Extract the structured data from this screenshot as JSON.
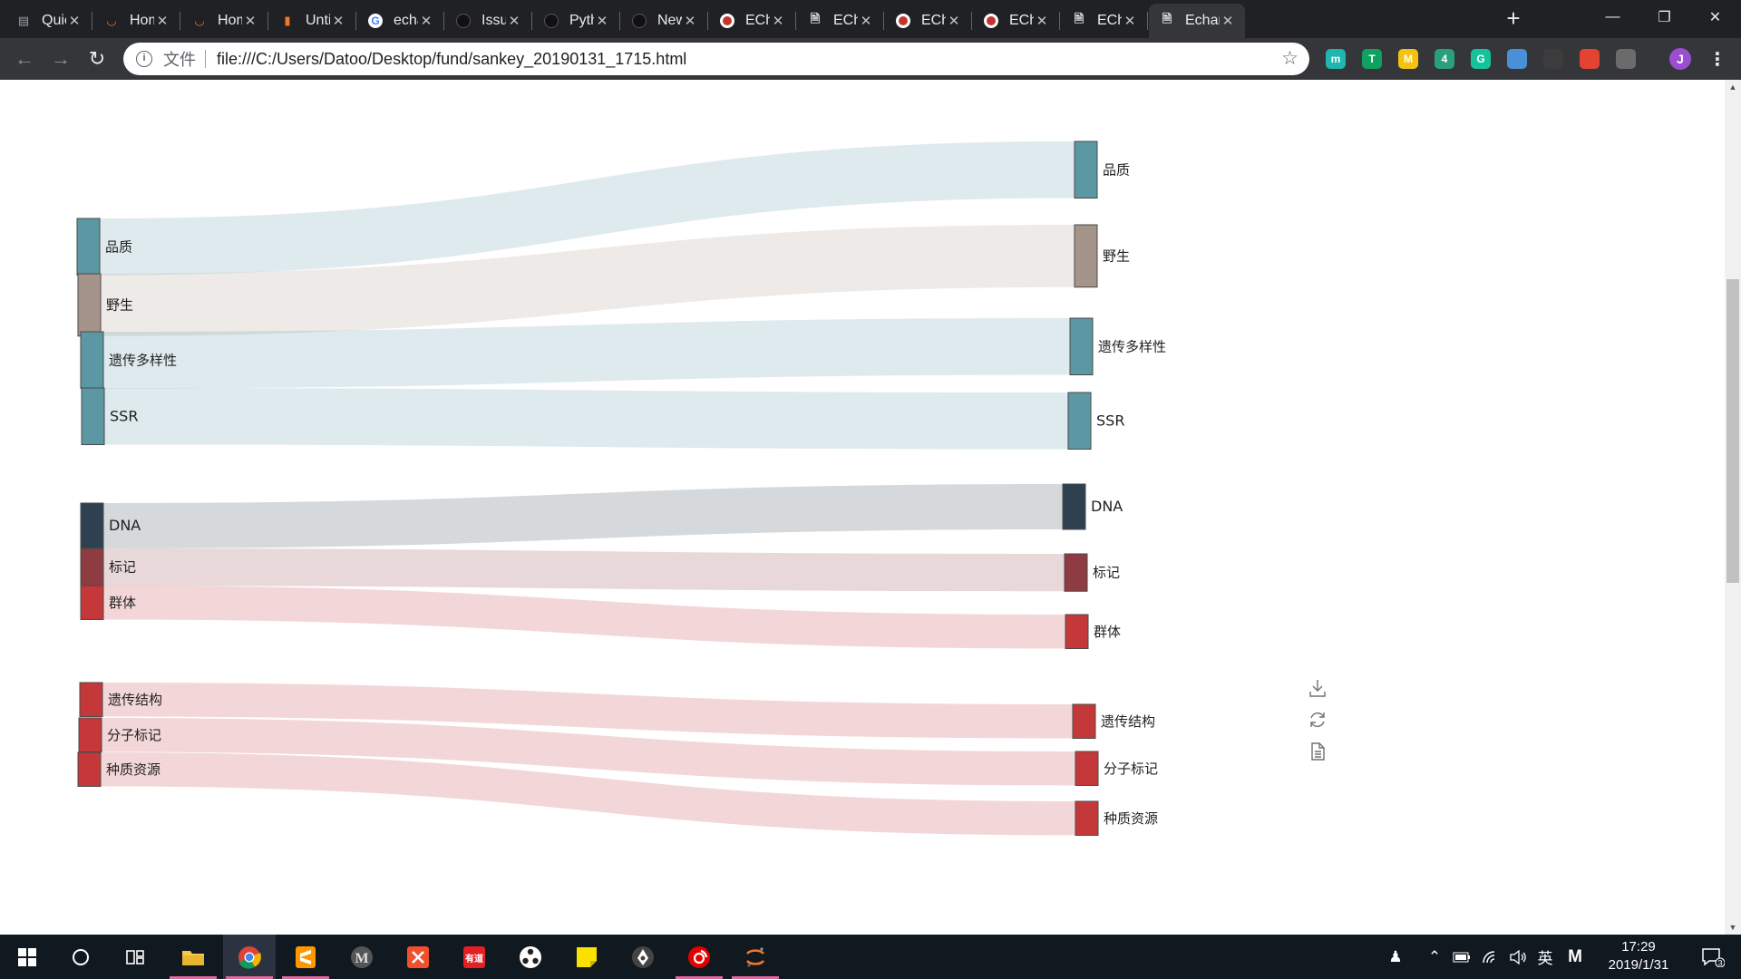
{
  "browser": {
    "tabs": [
      {
        "title": "Quick",
        "icon": "list-icon",
        "active": false
      },
      {
        "title": "Home",
        "icon": "jupyter-icon",
        "active": false
      },
      {
        "title": "Home",
        "icon": "jupyter-icon",
        "active": false
      },
      {
        "title": "Untitled",
        "icon": "notebook-icon",
        "active": false
      },
      {
        "title": "echarts",
        "icon": "google-icon",
        "active": false
      },
      {
        "title": "Issues",
        "icon": "github-icon",
        "active": false
      },
      {
        "title": "Python",
        "icon": "github-icon",
        "active": false
      },
      {
        "title": "New",
        "icon": "github-icon",
        "active": false
      },
      {
        "title": "ECharts",
        "icon": "echarts-icon",
        "active": false
      },
      {
        "title": "ECharts",
        "icon": "page-icon",
        "active": false
      },
      {
        "title": "ECharts",
        "icon": "echarts-icon",
        "active": false
      },
      {
        "title": "ECharts",
        "icon": "echarts-icon",
        "active": false
      },
      {
        "title": "ECharts",
        "icon": "page-icon",
        "active": false
      },
      {
        "title": "Echarts",
        "icon": "page-icon",
        "active": true
      }
    ],
    "address": {
      "scheme_label": "文件",
      "url": "file:///C:/Users/Datoo/Desktop/fund/sankey_20190131_1715.html"
    },
    "profile_initial": "J",
    "extensions": [
      {
        "name": "teal-extension-icon",
        "label": "m",
        "color": "#1fb6b0"
      },
      {
        "name": "tampermonkey-icon",
        "label": "T",
        "color": "#10a060"
      },
      {
        "name": "m-extension-icon",
        "label": "M",
        "color": "#f5c211"
      },
      {
        "name": "share-extension-icon",
        "label": "4",
        "color": "#28a07a"
      },
      {
        "name": "grammarly-icon",
        "label": "G",
        "color": "#15c39a"
      },
      {
        "name": "shield-extension-icon",
        "label": "",
        "color": "#4a90d9"
      },
      {
        "name": "circle-extension-icon",
        "label": "",
        "color": "#3c3c3c"
      },
      {
        "name": "todoist-icon",
        "label": "",
        "color": "#e44332"
      },
      {
        "name": "glasses-extension-icon",
        "label": "",
        "color": "#6b6b6b"
      }
    ]
  },
  "chart_data": {
    "type": "sankey",
    "layout": "horizontal",
    "links": [
      {
        "source": "品质",
        "target": "品质",
        "value": 50
      },
      {
        "source": "野生",
        "target": "野生",
        "value": 55
      },
      {
        "source": "遗传多样性",
        "target": "遗传多样性",
        "value": 50
      },
      {
        "source": "SSR",
        "target": "SSR",
        "value": 50
      },
      {
        "source": "DNA",
        "target": "DNA",
        "value": 40
      },
      {
        "source": "标记",
        "target": "标记",
        "value": 33
      },
      {
        "source": "群体",
        "target": "群体",
        "value": 30
      },
      {
        "source": "遗传结构",
        "target": "遗传结构",
        "value": 30
      },
      {
        "source": "分子标记",
        "target": "分子标记",
        "value": 30
      },
      {
        "source": "种质资源",
        "target": "种质资源",
        "value": 30
      }
    ],
    "colors": {
      "teal": "#5b98a3",
      "taupe": "#a59489",
      "navy": "#2f4051",
      "maroon": "#8e3b41",
      "red": "#c4383a"
    },
    "toolbox": [
      "download-icon",
      "refresh-icon",
      "data-view-icon"
    ]
  },
  "taskbar": {
    "apps": [
      {
        "name": "file-explorer-icon"
      },
      {
        "name": "chrome-icon"
      },
      {
        "name": "sublime-text-icon"
      },
      {
        "name": "markdown-icon"
      },
      {
        "name": "xmind-icon"
      },
      {
        "name": "youdao-icon"
      },
      {
        "name": "davinci-icon"
      },
      {
        "name": "sticky-notes-icon"
      },
      {
        "name": "inkscape-icon"
      },
      {
        "name": "netease-music-icon"
      },
      {
        "name": "jupyter-icon"
      }
    ],
    "tray": {
      "ime_label": "英",
      "ime_mode": "M",
      "time": "17:29",
      "date": "2019/1/31",
      "notifications": "3"
    }
  }
}
